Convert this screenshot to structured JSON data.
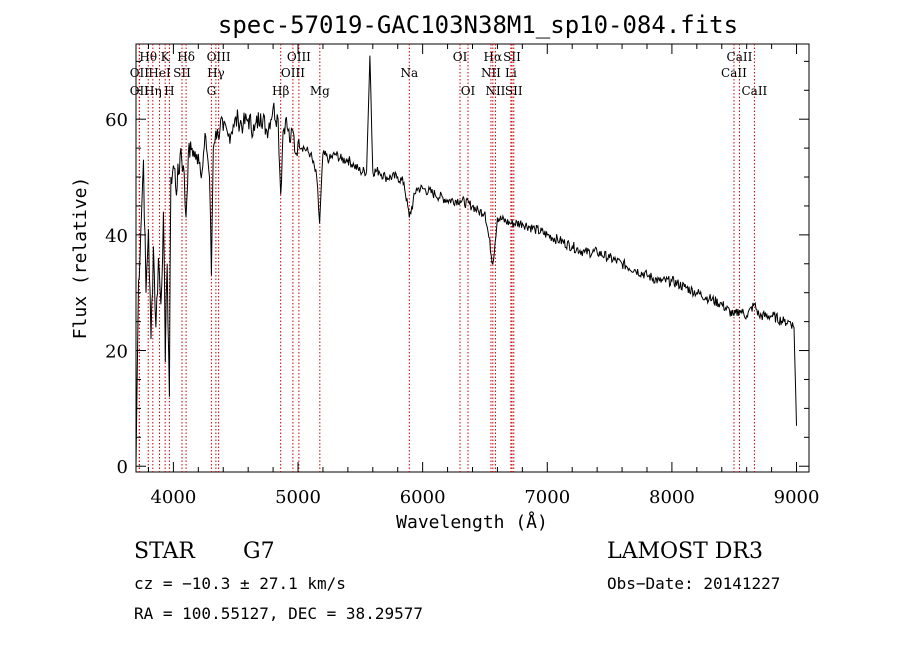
{
  "chart_data": {
    "type": "line",
    "title": "spec-57019-GAC103N38M1_sp10-084.fits",
    "xlabel": "Wavelength (Å)",
    "ylabel": "Flux (relative)",
    "xlim": [
      3700,
      9100
    ],
    "ylim": [
      -1,
      73
    ],
    "xticks": [
      4000,
      5000,
      6000,
      7000,
      8000,
      9000
    ],
    "xtick_labels": [
      "4000",
      "5000",
      "6000",
      "7000",
      "8000",
      "9000"
    ],
    "yticks": [
      0,
      20,
      40,
      60
    ],
    "ytick_labels": [
      "0",
      "20",
      "40",
      "60"
    ],
    "series": [
      {
        "name": "flux",
        "x": [
          3700,
          3720,
          3745,
          3760,
          3780,
          3800,
          3820,
          3840,
          3860,
          3880,
          3900,
          3920,
          3935,
          3950,
          3968,
          3980,
          4000,
          4030,
          4060,
          4080,
          4101,
          4120,
          4150,
          4180,
          4200,
          4230,
          4260,
          4290,
          4305,
          4320,
          4340,
          4360,
          4380,
          4400,
          4440,
          4480,
          4520,
          4560,
          4600,
          4650,
          4700,
          4750,
          4800,
          4840,
          4861,
          4880,
          4900,
          4920,
          4940,
          4960,
          4980,
          5000,
          5050,
          5100,
          5150,
          5173,
          5200,
          5250,
          5300,
          5350,
          5400,
          5450,
          5500,
          5550,
          5577,
          5600,
          5650,
          5700,
          5800,
          5850,
          5893,
          5950,
          6000,
          6100,
          6200,
          6300,
          6400,
          6450,
          6500,
          6563,
          6600,
          6700,
          6800,
          6900,
          7000,
          7100,
          7200,
          7300,
          7400,
          7500,
          7600,
          7700,
          7800,
          7900,
          8000,
          8100,
          8200,
          8300,
          8400,
          8498,
          8542,
          8600,
          8662,
          8700,
          8800,
          8900,
          8950,
          8980,
          9000
        ],
        "values": [
          0,
          32,
          44,
          53,
          30,
          41,
          22,
          38,
          24,
          36,
          28,
          44,
          18,
          35,
          12,
          50,
          52,
          48,
          55,
          52,
          43,
          54,
          55,
          53,
          54,
          51,
          57,
          50,
          33,
          55,
          58,
          57,
          60,
          58,
          57,
          59,
          60,
          59,
          60,
          58,
          61,
          58,
          62,
          60,
          47,
          58,
          60,
          58,
          56,
          58,
          54,
          56,
          55,
          54,
          50,
          42,
          54,
          53,
          54,
          53,
          53,
          52,
          51,
          51,
          71,
          51,
          51,
          50,
          50,
          49,
          43,
          48,
          48,
          47,
          46,
          46,
          45,
          44,
          44,
          35,
          43,
          42,
          42,
          41,
          40,
          39,
          38,
          37,
          37,
          36,
          35,
          34,
          33,
          32,
          32,
          31,
          30,
          29,
          28,
          26,
          27,
          26,
          28,
          26,
          26,
          25,
          25,
          24,
          7
        ]
      }
    ],
    "lines": [
      {
        "label": "Hθ",
        "x": 3798,
        "row": 1
      },
      {
        "label": "OII",
        "x": 3727,
        "row": 2
      },
      {
        "label": "OII",
        "x": 3727,
        "row": 3
      },
      {
        "label": "HeI",
        "x": 3889,
        "row": 2
      },
      {
        "label": "Hη",
        "x": 3835,
        "row": 3
      },
      {
        "label": "K",
        "x": 3934,
        "row": 1
      },
      {
        "label": "SII",
        "x": 4069,
        "row": 2
      },
      {
        "label": "H",
        "x": 3968,
        "row": 3
      },
      {
        "label": "Hδ",
        "x": 4102,
        "row": 1
      },
      {
        "label": "OIII",
        "x": 4363,
        "row": 1
      },
      {
        "label": "Hγ",
        "x": 4341,
        "row": 2
      },
      {
        "label": "G",
        "x": 4305,
        "row": 3
      },
      {
        "label": "Hβ",
        "x": 4861,
        "row": 3
      },
      {
        "label": "OIII",
        "x": 5007,
        "row": 1
      },
      {
        "label": "OIII",
        "x": 4959,
        "row": 2
      },
      {
        "label": "Mg",
        "x": 5175,
        "row": 3
      },
      {
        "label": "Na",
        "x": 5893,
        "row": 2
      },
      {
        "label": "OI",
        "x": 6300,
        "row": 1
      },
      {
        "label": "OI",
        "x": 6364,
        "row": 3
      },
      {
        "label": "Hα",
        "x": 6563,
        "row": 1
      },
      {
        "label": "SII",
        "x": 6717,
        "row": 1
      },
      {
        "label": "NII",
        "x": 6548,
        "row": 2
      },
      {
        "label": "Li",
        "x": 6708,
        "row": 2
      },
      {
        "label": "NII",
        "x": 6584,
        "row": 3
      },
      {
        "label": "SII",
        "x": 6731,
        "row": 3
      },
      {
        "label": "CaII",
        "x": 8542,
        "row": 1
      },
      {
        "label": "CaII",
        "x": 8498,
        "row": 2
      },
      {
        "label": "CaII",
        "x": 8662,
        "row": 3
      }
    ]
  },
  "info": {
    "class": "STAR",
    "subclass": "G7",
    "survey": "LAMOST DR3",
    "cz": "cz = −10.3 ± 27.1 km/s",
    "obs_date": "Obs−Date: 20141227",
    "radec": "RA = 100.55127, DEC =  38.29577"
  }
}
